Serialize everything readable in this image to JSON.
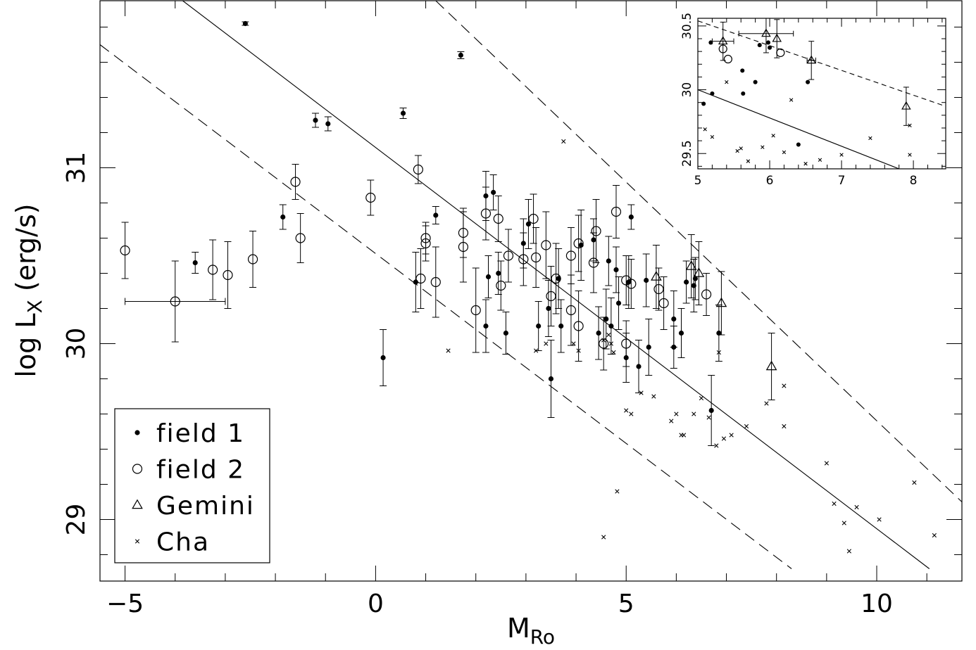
{
  "chart_data": [
    {
      "type": "scatter",
      "title": "",
      "xlabel": "M",
      "xlabel_sub": "Ro",
      "ylabel": "log L",
      "ylabel_sub": "X",
      "ylabel_suffix": " (erg/s)",
      "xlim": [
        -5.5,
        11.7
      ],
      "ylim": [
        28.65,
        31.95
      ],
      "x_ticks": [
        -5,
        0,
        5,
        10
      ],
      "x_tick_labels": [
        "−5",
        "0",
        "5",
        "10"
      ],
      "y_ticks": [
        29,
        30,
        31
      ],
      "y_tick_labels": [
        "29",
        "30",
        "31"
      ],
      "grid": false,
      "legend_placement": "bottom-left",
      "legend": [
        {
          "label": "field 1",
          "marker": "filled-circle"
        },
        {
          "label": "field 2",
          "marker": "open-circle"
        },
        {
          "label": "Gemini",
          "marker": "open-triangle"
        },
        {
          "label": "Cha",
          "marker": "cross"
        }
      ],
      "lines": [
        {
          "style": "solid",
          "x": [
            -3.85,
            11.05
          ],
          "y": [
            31.95,
            28.72
          ]
        },
        {
          "style": "dashed",
          "x": [
            -5.5,
            8.3
          ],
          "y": [
            31.7,
            28.72
          ]
        },
        {
          "style": "dashed",
          "x": [
            1.2,
            11.7
          ],
          "y": [
            31.95,
            29.1
          ]
        }
      ],
      "series": [
        {
          "name": "field 1",
          "marker": "filled-circle",
          "points": [
            {
              "x": -2.6,
              "y": 31.82,
              "e": 0.01
            },
            {
              "x": 1.7,
              "y": 31.64,
              "e": 0.02
            },
            {
              "x": 0.55,
              "y": 31.31,
              "e": 0.03
            },
            {
              "x": -1.2,
              "y": 31.27,
              "e": 0.04
            },
            {
              "x": -0.95,
              "y": 31.25,
              "e": 0.04
            },
            {
              "x": -3.6,
              "y": 30.46,
              "e": 0.06
            },
            {
              "x": -1.85,
              "y": 30.72,
              "e": 0.07
            },
            {
              "x": 0.15,
              "y": 29.92,
              "e": 0.16
            },
            {
              "x": 1.2,
              "y": 30.73,
              "e": 0.05
            },
            {
              "x": 0.8,
              "y": 30.35,
              "e": 0.17
            },
            {
              "x": 2.2,
              "y": 30.84,
              "e": 0.14
            },
            {
              "x": 2.35,
              "y": 30.86,
              "e": 0.1
            },
            {
              "x": 2.45,
              "y": 30.4,
              "e": 0.12
            },
            {
              "x": 2.25,
              "y": 30.38,
              "e": 0.12
            },
            {
              "x": 2.2,
              "y": 30.1,
              "e": 0.15
            },
            {
              "x": 2.6,
              "y": 30.06,
              "e": 0.12
            },
            {
              "x": 2.95,
              "y": 30.57,
              "e": 0.14
            },
            {
              "x": 3.05,
              "y": 30.68,
              "e": 0.14
            },
            {
              "x": 3.25,
              "y": 30.1,
              "e": 0.14
            },
            {
              "x": 3.45,
              "y": 30.2,
              "e": 0.16
            },
            {
              "x": 3.5,
              "y": 29.8,
              "e": 0.22
            },
            {
              "x": 3.7,
              "y": 30.1,
              "e": 0.15
            },
            {
              "x": 3.65,
              "y": 30.37,
              "e": 0.17
            },
            {
              "x": 4.1,
              "y": 30.56,
              "e": 0.2
            },
            {
              "x": 4.35,
              "y": 30.59,
              "e": 0.12
            },
            {
              "x": 4.45,
              "y": 30.06,
              "e": 0.15
            },
            {
              "x": 4.6,
              "y": 30.14,
              "e": 0.17
            },
            {
              "x": 4.65,
              "y": 30.47,
              "e": 0.14
            },
            {
              "x": 4.7,
              "y": 30.1,
              "e": 0.16
            },
            {
              "x": 4.8,
              "y": 30.42,
              "e": 0.13
            },
            {
              "x": 4.85,
              "y": 30.23,
              "e": 0.15
            },
            {
              "x": 5.0,
              "y": 29.92,
              "e": 0.14
            },
            {
              "x": 5.05,
              "y": 30.35,
              "e": 0.15
            },
            {
              "x": 5.1,
              "y": 30.72,
              "e": 0.07
            },
            {
              "x": 5.25,
              "y": 29.87,
              "e": 0.15
            },
            {
              "x": 5.45,
              "y": 29.98,
              "e": 0.16
            },
            {
              "x": 5.4,
              "y": 30.36,
              "e": 0.15
            },
            {
              "x": 5.95,
              "y": 30.14,
              "e": 0.16
            },
            {
              "x": 5.95,
              "y": 29.98,
              "e": 0.12
            },
            {
              "x": 6.1,
              "y": 30.06,
              "e": 0.14
            },
            {
              "x": 6.2,
              "y": 30.35,
              "e": 0.12
            },
            {
              "x": 6.35,
              "y": 30.33,
              "e": 0.15
            },
            {
              "x": 6.38,
              "y": 30.37,
              "e": 0.12
            },
            {
              "x": 6.7,
              "y": 29.62,
              "e": 0.2
            },
            {
              "x": 6.85,
              "y": 30.06,
              "e": 0.16
            }
          ]
        },
        {
          "name": "field 2",
          "marker": "open-circle",
          "points": [
            {
              "x": -5.0,
              "y": 30.53,
              "e": 0.16
            },
            {
              "x": -4.0,
              "y": 30.24,
              "e": 0.23,
              "xe": 1.0
            },
            {
              "x": -3.25,
              "y": 30.42,
              "e": 0.17
            },
            {
              "x": -2.95,
              "y": 30.39,
              "e": 0.19
            },
            {
              "x": -2.45,
              "y": 30.48,
              "e": 0.16
            },
            {
              "x": -1.6,
              "y": 30.92,
              "e": 0.1
            },
            {
              "x": -1.5,
              "y": 30.6,
              "e": 0.14
            },
            {
              "x": -0.1,
              "y": 30.83,
              "e": 0.1
            },
            {
              "x": 0.85,
              "y": 30.99,
              "e": 0.08
            },
            {
              "x": 0.9,
              "y": 30.37,
              "e": 0.17
            },
            {
              "x": 1.0,
              "y": 30.57,
              "e": 0.1
            },
            {
              "x": 1.0,
              "y": 30.6,
              "e": 0.09
            },
            {
              "x": 1.2,
              "y": 30.35,
              "e": 0.2
            },
            {
              "x": 1.75,
              "y": 30.63,
              "e": 0.14
            },
            {
              "x": 1.75,
              "y": 30.55,
              "e": 0.2
            },
            {
              "x": 2.0,
              "y": 30.19,
              "e": 0.24
            },
            {
              "x": 2.2,
              "y": 30.74,
              "e": 0.15
            },
            {
              "x": 2.45,
              "y": 30.71,
              "e": 0.13
            },
            {
              "x": 2.5,
              "y": 30.33,
              "e": 0.14
            },
            {
              "x": 2.65,
              "y": 30.5,
              "e": 0.15
            },
            {
              "x": 2.95,
              "y": 30.48,
              "e": 0.15
            },
            {
              "x": 3.15,
              "y": 30.71,
              "e": 0.14
            },
            {
              "x": 3.2,
              "y": 30.49,
              "e": 0.17
            },
            {
              "x": 3.4,
              "y": 30.56,
              "e": 0.19
            },
            {
              "x": 3.5,
              "y": 30.27,
              "e": 0.17
            },
            {
              "x": 3.6,
              "y": 30.37,
              "e": 0.2
            },
            {
              "x": 3.9,
              "y": 30.5,
              "e": 0.16
            },
            {
              "x": 3.9,
              "y": 30.19,
              "e": 0.2
            },
            {
              "x": 4.05,
              "y": 30.1,
              "e": 0.2
            },
            {
              "x": 4.05,
              "y": 30.57,
              "e": 0.16
            },
            {
              "x": 4.35,
              "y": 30.46,
              "e": 0.17
            },
            {
              "x": 4.4,
              "y": 30.64,
              "e": 0.18
            },
            {
              "x": 4.55,
              "y": 30.0,
              "e": 0.15
            },
            {
              "x": 4.8,
              "y": 30.75,
              "e": 0.15
            },
            {
              "x": 5.0,
              "y": 30.0,
              "e": 0.13
            },
            {
              "x": 5.0,
              "y": 30.36,
              "e": 0.14
            },
            {
              "x": 5.1,
              "y": 30.34,
              "e": 0.14
            },
            {
              "x": 5.65,
              "y": 30.31,
              "e": 0.12
            },
            {
              "x": 5.75,
              "y": 30.23,
              "e": 0.15
            },
            {
              "x": 6.6,
              "y": 30.28,
              "e": 0.12
            }
          ]
        },
        {
          "name": "Gemini",
          "marker": "open-triangle",
          "points": [
            {
              "x": 5.6,
              "y": 30.38,
              "e": 0.18
            },
            {
              "x": 6.3,
              "y": 30.44,
              "e": 0.18
            },
            {
              "x": 6.45,
              "y": 30.4,
              "e": 0.18
            },
            {
              "x": 6.9,
              "y": 30.23,
              "e": 0.18
            },
            {
              "x": 7.9,
              "y": 29.87,
              "e": 0.19
            }
          ]
        },
        {
          "name": "Cha",
          "marker": "cross",
          "points": [
            {
              "x": 1.45,
              "y": 29.96
            },
            {
              "x": 3.2,
              "y": 29.96
            },
            {
              "x": 3.4,
              "y": 30.0
            },
            {
              "x": 3.75,
              "y": 31.15
            },
            {
              "x": 3.95,
              "y": 30.0
            },
            {
              "x": 4.05,
              "y": 29.96
            },
            {
              "x": 4.55,
              "y": 30.02
            },
            {
              "x": 4.55,
              "y": 28.9
            },
            {
              "x": 4.65,
              "y": 30.05
            },
            {
              "x": 4.7,
              "y": 30.0
            },
            {
              "x": 4.75,
              "y": 29.95
            },
            {
              "x": 4.82,
              "y": 29.16
            },
            {
              "x": 5.0,
              "y": 29.62
            },
            {
              "x": 5.1,
              "y": 29.6
            },
            {
              "x": 5.3,
              "y": 29.72
            },
            {
              "x": 5.55,
              "y": 29.7
            },
            {
              "x": 5.9,
              "y": 29.56
            },
            {
              "x": 6.0,
              "y": 29.6
            },
            {
              "x": 6.1,
              "y": 29.48
            },
            {
              "x": 6.15,
              "y": 29.48
            },
            {
              "x": 6.35,
              "y": 29.6
            },
            {
              "x": 6.5,
              "y": 29.69
            },
            {
              "x": 6.65,
              "y": 29.58
            },
            {
              "x": 6.8,
              "y": 29.42
            },
            {
              "x": 6.85,
              "y": 29.95
            },
            {
              "x": 6.95,
              "y": 29.46
            },
            {
              "x": 7.1,
              "y": 29.48
            },
            {
              "x": 7.4,
              "y": 29.53
            },
            {
              "x": 7.8,
              "y": 29.66
            },
            {
              "x": 8.15,
              "y": 29.76
            },
            {
              "x": 8.15,
              "y": 29.53
            },
            {
              "x": 9.0,
              "y": 29.32
            },
            {
              "x": 9.15,
              "y": 29.09
            },
            {
              "x": 9.35,
              "y": 28.98
            },
            {
              "x": 9.45,
              "y": 28.82
            },
            {
              "x": 9.6,
              "y": 29.07
            },
            {
              "x": 10.05,
              "y": 29.0
            },
            {
              "x": 10.75,
              "y": 29.21
            },
            {
              "x": 11.15,
              "y": 28.91
            }
          ]
        }
      ]
    },
    {
      "type": "scatter",
      "title": "",
      "xlabel": "",
      "ylabel": "",
      "xlim": [
        5.0,
        8.45
      ],
      "ylim": [
        29.38,
        30.56
      ],
      "x_ticks": [
        5,
        6,
        7,
        8
      ],
      "x_tick_labels": [
        "5",
        "6",
        "7",
        "8"
      ],
      "y_ticks": [
        29.5,
        30,
        30.5
      ],
      "y_tick_labels": [
        "29.5",
        "30",
        "30.5"
      ],
      "grid": false,
      "legend_placement": "none",
      "lines": [
        {
          "style": "solid",
          "x": [
            5.0,
            7.8
          ],
          "y": [
            30.0,
            29.38
          ]
        },
        {
          "style": "dashed",
          "x": [
            5.0,
            8.45
          ],
          "y": [
            30.54,
            29.87
          ]
        }
      ],
      "series": [
        {
          "name": "field 1",
          "marker": "filled-circle",
          "points": [
            {
              "x": 5.08,
              "y": 29.89
            },
            {
              "x": 5.18,
              "y": 30.37
            },
            {
              "x": 5.2,
              "y": 29.97
            },
            {
              "x": 5.62,
              "y": 30.15
            },
            {
              "x": 5.63,
              "y": 29.97
            },
            {
              "x": 5.8,
              "y": 30.06
            },
            {
              "x": 5.86,
              "y": 30.35
            },
            {
              "x": 5.98,
              "y": 30.37
            },
            {
              "x": 6.0,
              "y": 30.33
            },
            {
              "x": 6.4,
              "y": 29.57
            },
            {
              "x": 6.53,
              "y": 30.06
            }
          ]
        },
        {
          "name": "field 2",
          "marker": "open-circle",
          "points": [
            {
              "x": 5.35,
              "y": 30.32
            },
            {
              "x": 5.42,
              "y": 30.24
            },
            {
              "x": 6.15,
              "y": 30.29
            }
          ]
        },
        {
          "name": "Gemini",
          "marker": "open-triangle",
          "points": [
            {
              "x": 5.35,
              "y": 30.38,
              "e": 0.15,
              "xe": 0.15
            },
            {
              "x": 5.95,
              "y": 30.44,
              "e": 0.15,
              "xe": 0.38
            },
            {
              "x": 6.1,
              "y": 30.4,
              "e": 0.15
            },
            {
              "x": 6.58,
              "y": 30.23,
              "e": 0.15,
              "xe": 0.06
            },
            {
              "x": 7.9,
              "y": 29.87,
              "e": 0.15
            }
          ]
        },
        {
          "name": "Cha",
          "marker": "cross",
          "points": [
            {
              "x": 5.1,
              "y": 29.69
            },
            {
              "x": 5.2,
              "y": 29.63
            },
            {
              "x": 5.4,
              "y": 30.06
            },
            {
              "x": 5.55,
              "y": 29.52
            },
            {
              "x": 5.6,
              "y": 29.54
            },
            {
              "x": 5.7,
              "y": 29.44
            },
            {
              "x": 5.9,
              "y": 29.55
            },
            {
              "x": 6.05,
              "y": 29.64
            },
            {
              "x": 6.2,
              "y": 29.51
            },
            {
              "x": 6.3,
              "y": 29.92
            },
            {
              "x": 6.5,
              "y": 29.42
            },
            {
              "x": 6.7,
              "y": 29.45
            },
            {
              "x": 7.0,
              "y": 29.49
            },
            {
              "x": 7.4,
              "y": 29.62
            },
            {
              "x": 7.95,
              "y": 29.72
            },
            {
              "x": 7.95,
              "y": 29.49
            }
          ]
        }
      ]
    }
  ]
}
